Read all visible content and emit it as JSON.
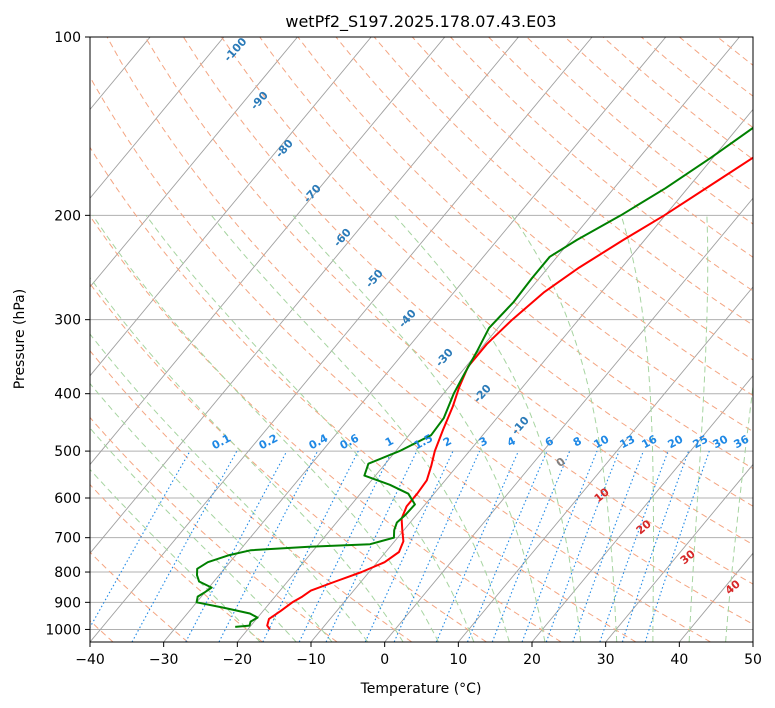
{
  "chart_data": {
    "type": "line",
    "title": "wetPf2_S197.2025.178.07.43.E03",
    "xlabel": "Temperature (°C)",
    "ylabel": "Pressure (hPa)",
    "xlim": [
      -40,
      50
    ],
    "ylim": [
      1050,
      100
    ],
    "y_scale": "log",
    "grid": true,
    "x_ticks": [
      "−40",
      "−30",
      "−20",
      "−10",
      "0",
      "10",
      "20",
      "30",
      "40",
      "50"
    ],
    "y_ticks": [
      "100",
      "200",
      "300",
      "400",
      "500",
      "600",
      "700",
      "800",
      "900",
      "1000"
    ],
    "x_tick_values": [
      -40,
      -30,
      -20,
      -10,
      0,
      10,
      20,
      30,
      40,
      50
    ],
    "y_tick_values": [
      100,
      200,
      300,
      400,
      500,
      600,
      700,
      800,
      900,
      1000
    ],
    "series": [
      {
        "color": "#ff0000",
        "points": [
          [
            1000,
            -17.0
          ],
          [
            985,
            -17.8
          ],
          [
            960,
            -18.3
          ],
          [
            930,
            -17.6
          ],
          [
            900,
            -17.0
          ],
          [
            880,
            -16.3
          ],
          [
            860,
            -15.8
          ],
          [
            830,
            -13.5
          ],
          [
            800,
            -11.0
          ],
          [
            770,
            -9.0
          ],
          [
            740,
            -8.2
          ],
          [
            710,
            -8.8
          ],
          [
            680,
            -10.2
          ],
          [
            650,
            -11.6
          ],
          [
            620,
            -12.3
          ],
          [
            590,
            -12.3
          ],
          [
            560,
            -12.5
          ],
          [
            530,
            -13.5
          ],
          [
            500,
            -14.7
          ],
          [
            460,
            -16.0
          ],
          [
            420,
            -17.3
          ],
          [
            390,
            -18.6
          ],
          [
            360,
            -19.7
          ],
          [
            330,
            -19.7
          ],
          [
            300,
            -19.0
          ],
          [
            270,
            -17.8
          ],
          [
            245,
            -15.8
          ],
          [
            220,
            -12.9
          ],
          [
            200,
            -10.1
          ],
          [
            175,
            -6.8
          ],
          [
            155,
            -3.8
          ],
          [
            135,
            -0.1
          ],
          [
            120,
            2.8
          ],
          [
            110,
            5.5
          ],
          [
            100,
            8.1
          ]
        ]
      },
      {
        "color": "#008000",
        "points": [
          [
            990,
            -22.0
          ],
          [
            985,
            -20.2
          ],
          [
            970,
            -20.5
          ],
          [
            955,
            -20.0
          ],
          [
            940,
            -21.5
          ],
          [
            920,
            -25.5
          ],
          [
            900,
            -30.0
          ],
          [
            880,
            -30.5
          ],
          [
            865,
            -30.0
          ],
          [
            850,
            -29.6
          ],
          [
            830,
            -32.0
          ],
          [
            810,
            -33.0
          ],
          [
            790,
            -33.7
          ],
          [
            770,
            -33.0
          ],
          [
            750,
            -31.0
          ],
          [
            735,
            -28.5
          ],
          [
            725,
            -21.0
          ],
          [
            718,
            -13.0
          ],
          [
            700,
            -10.5
          ],
          [
            680,
            -11.3
          ],
          [
            660,
            -11.8
          ],
          [
            640,
            -11.5
          ],
          [
            615,
            -11.4
          ],
          [
            590,
            -13.5
          ],
          [
            570,
            -17.0
          ],
          [
            550,
            -21.5
          ],
          [
            525,
            -22.3
          ],
          [
            500,
            -19.5
          ],
          [
            470,
            -17.0
          ],
          [
            440,
            -17.2
          ],
          [
            400,
            -18.6
          ],
          [
            370,
            -19.4
          ],
          [
            340,
            -20.2
          ],
          [
            310,
            -21.2
          ],
          [
            280,
            -20.8
          ],
          [
            255,
            -21.0
          ],
          [
            235,
            -21.0
          ],
          [
            220,
            -19.2
          ],
          [
            200,
            -16.0
          ],
          [
            180,
            -13.0
          ],
          [
            160,
            -10.3
          ],
          [
            140,
            -7.6
          ],
          [
            125,
            -4.8
          ],
          [
            112,
            -1.9
          ],
          [
            100,
            1.0
          ]
        ]
      }
    ],
    "annotations": {
      "dry_adiabat_labels": [
        "-100",
        "-90",
        "-80",
        "-70",
        "-60",
        "-50",
        "-40",
        "-30",
        "-20",
        "-10"
      ],
      "mixing_ratio_labels": [
        "0.1",
        "0.2",
        "0.4",
        "0.6",
        "1",
        "1.5",
        "2",
        "3",
        "4",
        "6",
        "8",
        "10",
        "13",
        "16",
        "20",
        "25",
        "30",
        "36"
      ],
      "moist_adiabat_labels": [
        "0",
        "10",
        "20",
        "30",
        "40"
      ]
    },
    "colors": {
      "temperature": "#ff0000",
      "dewpoint": "#008000",
      "isotherm": "#a0a0a0",
      "dry_adiabat": "#f4a582",
      "moist_adiabat": "#a6d4a0",
      "mixing_ratio": "#1e88e5",
      "dry_label": "#2a7ab8",
      "moist_label": "#d62728",
      "zero_label": "#808080"
    }
  }
}
